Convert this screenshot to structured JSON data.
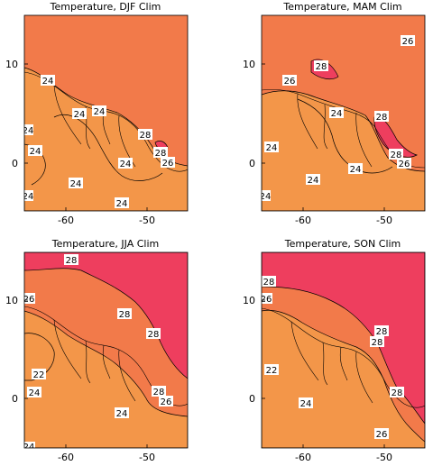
{
  "map_style": {
    "colors": {
      "warm_fill": "#f27a4a",
      "cool_fill": "#f39649",
      "hot_fill": "#ee3e5e",
      "coast_line": "#000000",
      "contour_line": "#000000"
    },
    "x_ticks": [
      "-60",
      "-50"
    ],
    "y_ticks": [
      "10",
      "0"
    ]
  },
  "panels": [
    {
      "title": "Temperature, DJF Clim",
      "labels": [
        "24",
        "24",
        "24",
        "24",
        "24",
        "24",
        "24",
        "24",
        "28",
        "28",
        "26"
      ],
      "hot_patches": 1
    },
    {
      "title": "Temperature, MAM Clim",
      "labels": [
        "26",
        "28",
        "26",
        "24",
        "28",
        "24",
        "28",
        "26",
        "24",
        "24",
        "24"
      ],
      "hot_patches": 2
    },
    {
      "title": "Temperature, JJA Clim",
      "labels": [
        "28",
        "26",
        "28",
        "28",
        "22",
        "24",
        "24",
        "28",
        "26",
        "24"
      ],
      "hot_patches": 1
    },
    {
      "title": "Temperature, SON Clim",
      "labels": [
        "28",
        "26",
        "22",
        "24",
        "28",
        "28",
        "28",
        "24",
        "26"
      ],
      "hot_patches": 1
    }
  ]
}
